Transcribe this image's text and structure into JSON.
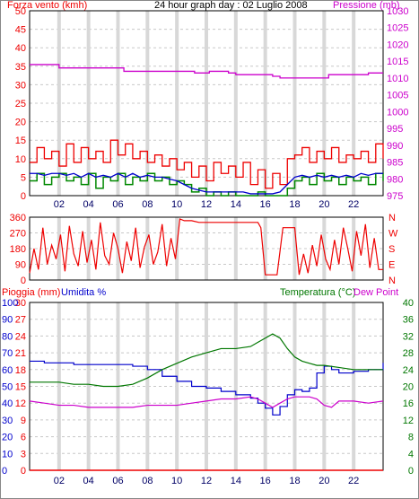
{
  "header": {
    "wind_label": "Forza vento (kmh)",
    "title": "24 hour graph day : 02 Luglio 2008",
    "pressure_label": "Pressione (mb)"
  },
  "lower_header": {
    "rain_label": "Pioggia (mm)",
    "humidity_label": "Umidita %",
    "temp_label": "Temperatura (°C)",
    "dew_label": "Dew Point"
  },
  "colors": {
    "wind": "#ee0000",
    "gust": "#008800",
    "wind_avg": "#0000cc",
    "pressure": "#cc00cc",
    "direction": "#ee0000",
    "rain": "#ee0000",
    "humidity": "#0000cc",
    "temperature": "#007700",
    "dewpoint": "#cc00cc",
    "grid": "#c8c8c8"
  },
  "chart_data": [
    {
      "type": "line",
      "title": "24 hour graph day : 02 Luglio 2008",
      "x_ticks": [
        "02",
        "04",
        "06",
        "08",
        "10",
        "12",
        "14",
        "16",
        "18",
        "20",
        "22"
      ],
      "xlim": [
        0,
        24
      ],
      "left_axis": {
        "label": "Forza vento (kmh)",
        "ylim": [
          0,
          50
        ],
        "ticks": [
          0,
          5,
          10,
          15,
          20,
          25,
          30,
          35,
          40,
          45,
          50
        ]
      },
      "right_axis": {
        "label": "Pressione (mb)",
        "ylim": [
          975,
          1030
        ],
        "ticks": [
          975,
          980,
          985,
          990,
          995,
          1000,
          1005,
          1010,
          1015,
          1020,
          1025,
          1030
        ]
      },
      "series": [
        {
          "name": "Pressione (mb)",
          "axis": "right",
          "x": [
            0,
            1.8,
            2,
            6.2,
            6.4,
            11,
            11.2,
            12,
            12.2,
            13,
            13.5,
            14,
            15,
            16,
            16.5,
            17,
            17.5,
            18,
            19,
            20,
            20.3,
            21,
            22,
            23,
            23.5,
            24
          ],
          "y": [
            1014,
            1014,
            1013,
            1013,
            1012,
            1012,
            1011.5,
            1011.5,
            1012,
            1012,
            1011.5,
            1011,
            1011,
            1011,
            1010.5,
            1010,
            1010,
            1010,
            1010,
            1010,
            1011,
            1011,
            1011,
            1011.5,
            1011.5,
            1011.5
          ]
        },
        {
          "name": "wind",
          "axis": "left",
          "x": [
            0,
            0.5,
            1,
            1.5,
            2,
            2.5,
            3,
            3.5,
            4,
            4.5,
            5,
            5.5,
            6,
            6.5,
            7,
            7.5,
            8,
            8.5,
            9,
            9.5,
            10,
            10.5,
            11,
            11.5,
            12,
            12.5,
            13,
            13.5,
            14,
            14.5,
            15,
            15.5,
            16,
            16.5,
            17,
            17.5,
            18,
            18.5,
            19,
            19.5,
            20,
            20.5,
            21,
            21.5,
            22,
            22.5,
            23,
            23.5,
            24
          ],
          "y": [
            9,
            13,
            10,
            12,
            8,
            14,
            9,
            13,
            10,
            12,
            9,
            15,
            11,
            14,
            10,
            12,
            9,
            11,
            8,
            10,
            7,
            9,
            5,
            8,
            4,
            9,
            6,
            8,
            5,
            9,
            3,
            7,
            2,
            6,
            3,
            10,
            11,
            13,
            9,
            12,
            10,
            13,
            9,
            11,
            10,
            12,
            9,
            14,
            10
          ]
        },
        {
          "name": "gust",
          "axis": "left",
          "x": [
            0,
            0.5,
            1,
            1.5,
            2,
            2.5,
            3,
            3.5,
            4,
            4.5,
            5,
            5.5,
            6,
            6.5,
            7,
            7.5,
            8,
            8.5,
            9,
            9.5,
            10,
            10.5,
            11,
            11.5,
            12,
            12.5,
            13,
            13.5,
            14,
            14.5,
            15,
            15.5,
            16,
            16.5,
            17,
            17.5,
            18,
            18.5,
            19,
            19.5,
            20,
            20.5,
            21,
            21.5,
            22,
            22.5,
            23,
            23.5,
            24
          ],
          "y": [
            4,
            6,
            3,
            5,
            6,
            4,
            5,
            3,
            6,
            2,
            5,
            4,
            6,
            3,
            5,
            4,
            6,
            4,
            5,
            3,
            4,
            3,
            1,
            2,
            0,
            1,
            0,
            1,
            0,
            0,
            0,
            1,
            0,
            0,
            0,
            2,
            4,
            5,
            3,
            6,
            4,
            5,
            3,
            5,
            4,
            5,
            3,
            6,
            4
          ]
        },
        {
          "name": "wind_avg",
          "axis": "left",
          "x": [
            0,
            0.5,
            1,
            1.5,
            2,
            2.5,
            3,
            3.5,
            4,
            4.5,
            5,
            5.5,
            6,
            6.5,
            7,
            7.5,
            8,
            8.5,
            9,
            9.5,
            10,
            10.5,
            11,
            11.5,
            12,
            12.5,
            13,
            13.5,
            14,
            14.5,
            15,
            15.5,
            16,
            16.5,
            17,
            17.5,
            18,
            18.5,
            19,
            19.5,
            20,
            20.5,
            21,
            21.5,
            22,
            22.5,
            23,
            23.5,
            24
          ],
          "y": [
            6,
            6,
            5.5,
            6,
            6,
            5.5,
            6,
            5,
            6,
            5,
            5.5,
            5,
            6,
            5,
            6,
            5,
            5.5,
            5,
            5,
            4.5,
            4,
            3,
            2,
            1.5,
            1,
            1,
            1,
            1,
            1,
            1,
            0.5,
            0.5,
            0.5,
            0.5,
            1,
            3,
            5,
            5.5,
            5,
            5.5,
            5,
            5.5,
            5,
            5.5,
            5,
            6,
            5.5,
            6,
            6
          ]
        }
      ]
    },
    {
      "type": "line",
      "y_ticks": [
        "360",
        "270",
        "180",
        "90",
        "0"
      ],
      "y_ticks_right": [
        "N",
        "W",
        "S",
        "E",
        "N"
      ],
      "ylim": [
        0,
        360
      ],
      "series": [
        {
          "name": "direction",
          "x": [
            0,
            0.3,
            0.6,
            0.9,
            1.2,
            1.5,
            1.8,
            2.1,
            2.4,
            2.7,
            3,
            3.3,
            3.6,
            3.9,
            4.2,
            4.5,
            4.8,
            5.1,
            5.4,
            5.7,
            6,
            6.3,
            6.6,
            6.9,
            7.2,
            7.5,
            7.8,
            8.1,
            8.4,
            8.7,
            9,
            9.3,
            9.6,
            9.9,
            10.2,
            10.5,
            11,
            11.5,
            12,
            12.5,
            13,
            13.5,
            14,
            14.5,
            15,
            15.5,
            15.7,
            16,
            16.5,
            16.8,
            17.2,
            17.5,
            18,
            18.3,
            18.6,
            18.9,
            19.2,
            19.5,
            19.8,
            20.1,
            20.4,
            20.7,
            21,
            21.3,
            21.6,
            21.9,
            22.2,
            22.5,
            22.8,
            23.1,
            23.4,
            23.7,
            24
          ],
          "y": [
            40,
            180,
            60,
            300,
            90,
            200,
            120,
            260,
            50,
            310,
            150,
            80,
            280,
            100,
            230,
            60,
            330,
            140,
            90,
            270,
            180,
            40,
            220,
            110,
            300,
            70,
            190,
            260,
            90,
            160,
            320,
            80,
            240,
            120,
            350,
            340,
            340,
            330,
            330,
            330,
            330,
            330,
            330,
            330,
            330,
            330,
            300,
            30,
            30,
            30,
            300,
            300,
            300,
            30,
            150,
            40,
            200,
            80,
            260,
            120,
            60,
            230,
            90,
            300,
            180,
            50,
            280,
            140,
            320,
            70,
            240,
            60,
            60
          ]
        }
      ]
    },
    {
      "type": "line",
      "x_ticks": [
        "02",
        "04",
        "06",
        "08",
        "10",
        "12",
        "14",
        "16",
        "18",
        "20",
        "22"
      ],
      "xlim": [
        0,
        24
      ],
      "left_axis": {
        "label": "Pioggia (mm)",
        "ylim": [
          0,
          30
        ],
        "ticks": [
          0,
          3,
          6,
          9,
          12,
          15,
          18,
          21,
          24,
          27,
          30
        ]
      },
      "left_axis_humidity": {
        "label": "Umidita %",
        "ylim": [
          0,
          100
        ],
        "ticks": [
          0,
          10,
          20,
          30,
          40,
          50,
          60,
          70,
          80,
          90,
          100
        ]
      },
      "right_axis": {
        "label": "Temperatura (°C)",
        "ylim": [
          0,
          40
        ],
        "ticks": [
          0,
          4,
          8,
          12,
          16,
          20,
          24,
          28,
          32,
          36,
          40
        ]
      },
      "series": [
        {
          "name": "Pioggia (mm)",
          "axis": "left",
          "x": [
            0,
            24
          ],
          "y": [
            0,
            0
          ]
        },
        {
          "name": "Umidita %",
          "axis": "humidity",
          "x": [
            0,
            1,
            2,
            3,
            4,
            5,
            6,
            7,
            8,
            9,
            10,
            11,
            12,
            13,
            14,
            15,
            15.5,
            16,
            16.5,
            17,
            17.5,
            18,
            18.5,
            19,
            19.5,
            20,
            20.5,
            21,
            22,
            23,
            24
          ],
          "y": [
            65,
            64,
            64,
            63,
            63,
            63,
            63,
            62,
            60,
            56,
            53,
            50,
            49,
            47,
            45,
            43,
            40,
            37,
            33,
            38,
            45,
            48,
            47,
            49,
            58,
            62,
            60,
            58,
            59,
            60,
            64
          ]
        },
        {
          "name": "Temperatura (°C)",
          "axis": "right",
          "x": [
            0,
            1,
            2,
            3,
            4,
            5,
            6,
            7,
            8,
            9,
            10,
            11,
            12,
            13,
            14,
            15,
            15.5,
            16,
            16.5,
            17,
            17.5,
            18,
            18.5,
            19,
            19.5,
            20,
            21,
            22,
            23,
            24
          ],
          "y": [
            21,
            21,
            21,
            20.5,
            20.5,
            20,
            20,
            20.5,
            22,
            24,
            25.5,
            27,
            28,
            29,
            29,
            29.5,
            30.5,
            31.5,
            32.5,
            31.5,
            29,
            27,
            26,
            25.5,
            25,
            25,
            24.5,
            24,
            24,
            24
          ]
        },
        {
          "name": "Dew Point",
          "axis": "right",
          "x": [
            0,
            1,
            2,
            3,
            4,
            5,
            6,
            7,
            8,
            9,
            10,
            11,
            12,
            13,
            14,
            15,
            15.5,
            16,
            16.5,
            17,
            17.5,
            18,
            18.5,
            19,
            19.5,
            20,
            20.5,
            21,
            22,
            23,
            24
          ],
          "y": [
            16.5,
            16,
            15.5,
            15.5,
            15,
            15,
            15,
            15,
            15.5,
            15.5,
            15.5,
            16,
            16.5,
            17,
            17,
            17.5,
            17,
            16,
            15,
            16,
            17,
            17.5,
            17.5,
            17.5,
            17,
            15.5,
            15,
            16.5,
            16.5,
            16,
            16.5
          ]
        }
      ]
    }
  ]
}
